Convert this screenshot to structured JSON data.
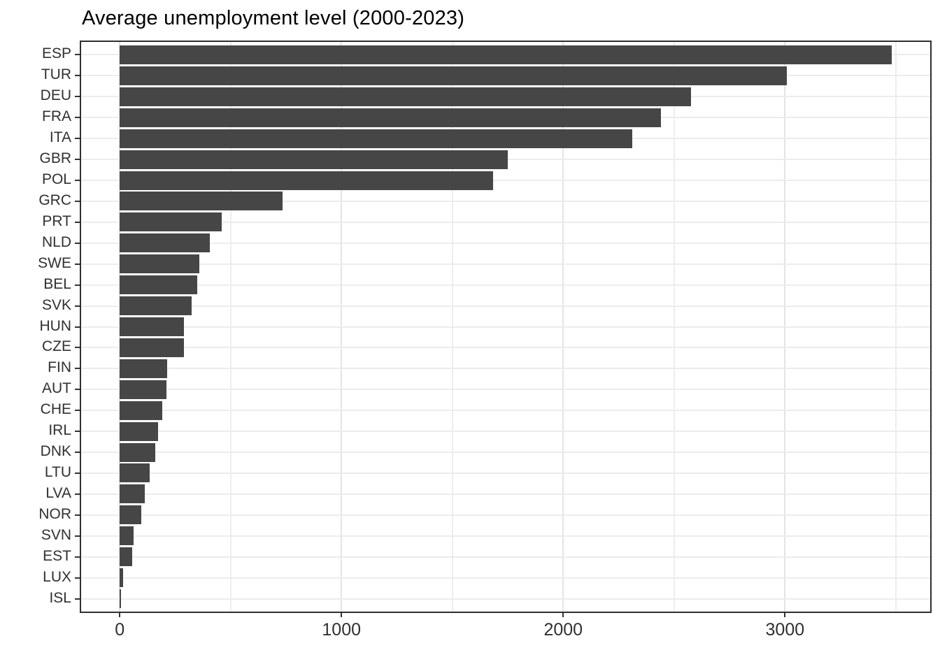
{
  "chart_data": {
    "type": "bar",
    "orientation": "horizontal",
    "title": "Average unemployment level (2000-2023)",
    "xlabel": "",
    "ylabel": "",
    "categories": [
      "ESP",
      "TUR",
      "DEU",
      "FRA",
      "ITA",
      "GBR",
      "POL",
      "GRC",
      "PRT",
      "NLD",
      "SWE",
      "BEL",
      "SVK",
      "HUN",
      "CZE",
      "FIN",
      "AUT",
      "CHE",
      "IRL",
      "DNK",
      "LTU",
      "LVA",
      "NOR",
      "SVN",
      "EST",
      "LUX",
      "ISL"
    ],
    "values": [
      3480,
      3010,
      2575,
      2440,
      2310,
      1750,
      1685,
      735,
      460,
      405,
      360,
      350,
      324,
      290,
      289,
      215,
      211,
      192,
      174,
      160,
      135,
      113,
      98,
      62,
      57,
      16,
      6
    ],
    "x_ticks": [
      0,
      1000,
      2000,
      3000
    ],
    "x_tick_labels": [
      "0",
      "1000",
      "2000",
      "3000"
    ],
    "x_minor_ticks": [
      500,
      1500,
      2500,
      3500
    ],
    "xlim": [
      -174,
      3655
    ],
    "grid": true,
    "legend": false,
    "colors": {
      "bar": "#464646",
      "grid_major": "#e4e4e4",
      "grid_minor": "#ededed",
      "panel_border": "#2f2f2f",
      "axis_text": "#303030",
      "title_text": "#000000",
      "tick_mark": "#333333",
      "background": "#ffffff"
    }
  }
}
